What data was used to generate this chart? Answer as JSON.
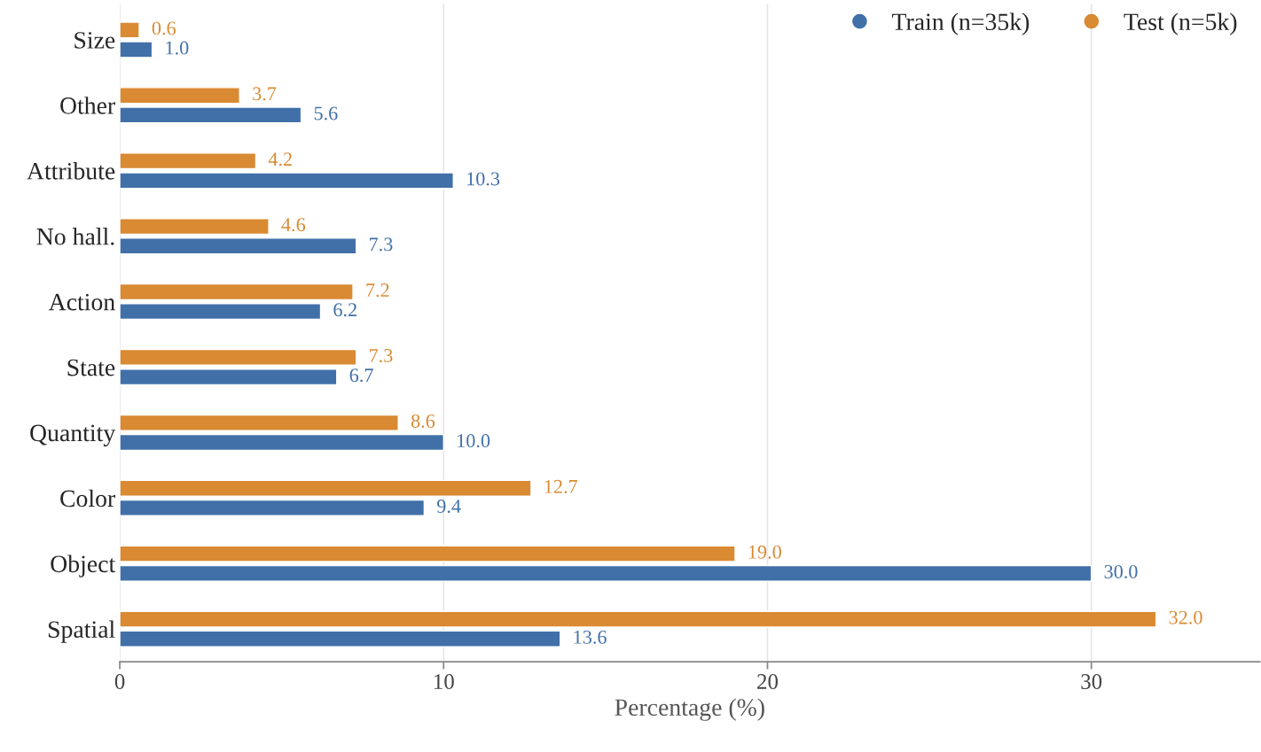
{
  "chart_data": {
    "type": "bar",
    "orientation": "horizontal",
    "xlabel": "Percentage (%)",
    "categories": [
      "Size",
      "Other",
      "Attribute",
      "No hall.",
      "Action",
      "State",
      "Quantity",
      "Color",
      "Object",
      "Spatial"
    ],
    "series": [
      {
        "name": "Train (n=35k)",
        "color": "#4170a8",
        "values": [
          1.0,
          5.6,
          10.3,
          7.3,
          6.2,
          6.7,
          10.0,
          9.4,
          30.0,
          13.6
        ],
        "value_labels": [
          "1.0",
          "5.6",
          "10.3",
          "7.3",
          "6.2",
          "6.7",
          "10.0",
          "9.4",
          "30.0",
          "13.6"
        ]
      },
      {
        "name": "Test (n=5k)",
        "color": "#d98a33",
        "values": [
          0.6,
          3.7,
          4.2,
          4.6,
          7.2,
          7.3,
          8.6,
          12.7,
          19.0,
          32.0
        ],
        "value_labels": [
          "0.6",
          "3.7",
          "4.2",
          "4.6",
          "7.2",
          "7.3",
          "8.6",
          "12.7",
          "19.0",
          "32.0"
        ]
      }
    ],
    "xlim": [
      0,
      35.2
    ],
    "xticks": [
      0,
      10,
      20,
      30
    ],
    "grid": "x",
    "legend": "top right",
    "marker": "circle"
  }
}
